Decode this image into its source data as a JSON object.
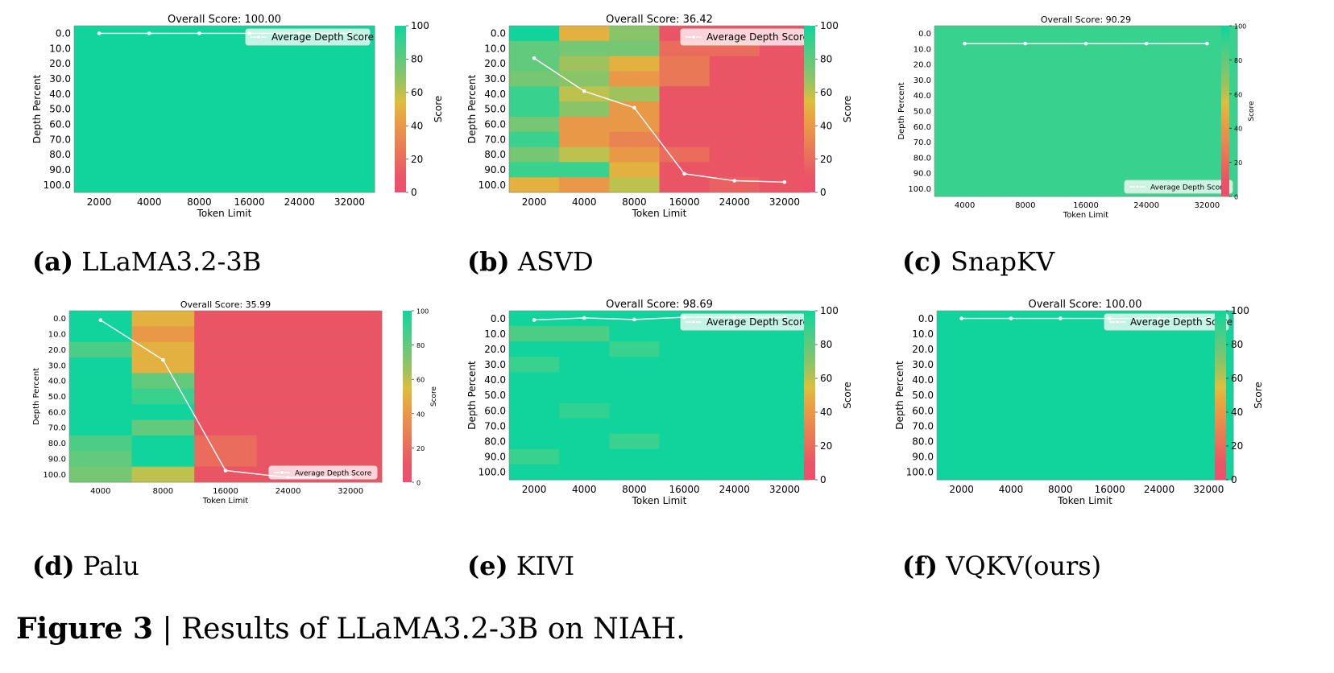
{
  "colors": {
    "green": "#10d49c",
    "green_mid": "#38d18e",
    "green_light": "#69c87a",
    "yellow_green": "#9fc25d",
    "yellow": "#dbbf3e",
    "orange": "#e9a342",
    "orange_red": "#e98352",
    "red": "#ea5566",
    "pink_red": "#ed4f6e"
  },
  "chart_data": [
    {
      "id": "a",
      "type": "heatmap",
      "title": "Overall Score: 100.00",
      "xlabel": "Token Limit",
      "ylabel": "Depth Percent",
      "x": [
        "2000",
        "4000",
        "8000",
        "16000",
        "24000",
        "32000"
      ],
      "y": [
        "0.0",
        "10.0",
        "20.0",
        "30.0",
        "40.0",
        "50.0",
        "60.0",
        "70.0",
        "80.0",
        "90.0",
        "100.0"
      ],
      "values": [
        [
          100,
          100,
          100,
          100,
          100,
          100
        ],
        [
          100,
          100,
          100,
          100,
          100,
          100
        ],
        [
          100,
          100,
          100,
          100,
          100,
          100
        ],
        [
          100,
          100,
          100,
          100,
          100,
          100
        ],
        [
          100,
          100,
          100,
          100,
          100,
          100
        ],
        [
          100,
          100,
          100,
          100,
          100,
          100
        ],
        [
          100,
          100,
          100,
          100,
          100,
          100
        ],
        [
          100,
          100,
          100,
          100,
          100,
          100
        ],
        [
          100,
          100,
          100,
          100,
          100,
          100
        ],
        [
          100,
          100,
          100,
          100,
          100,
          100
        ],
        [
          100,
          100,
          100,
          100,
          100,
          100
        ]
      ],
      "average_depth_score": [
        0,
        0,
        0,
        0,
        0,
        0
      ],
      "legend": "Average Depth Score",
      "legend_position": "top-right",
      "colorbar_label": "Score",
      "colorbar_ticks": [
        "0",
        "20",
        "40",
        "60",
        "80",
        "100"
      ],
      "caption_letter": "(a)",
      "caption_text": "LLaMA3.2-3B"
    },
    {
      "id": "b",
      "type": "heatmap",
      "title": "Overall Score: 36.42",
      "xlabel": "Token Limit",
      "ylabel": "Depth Percent",
      "x": [
        "2000",
        "4000",
        "8000",
        "16000",
        "24000",
        "32000"
      ],
      "y": [
        "0.0",
        "10.0",
        "20.0",
        "30.0",
        "40.0",
        "50.0",
        "60.0",
        "70.0",
        "80.0",
        "90.0",
        "100.0"
      ],
      "values": [
        [
          100,
          50,
          70,
          10,
          10,
          10
        ],
        [
          80,
          75,
          75,
          20,
          20,
          10
        ],
        [
          80,
          65,
          50,
          25,
          10,
          10
        ],
        [
          75,
          70,
          40,
          25,
          10,
          10
        ],
        [
          90,
          60,
          65,
          10,
          10,
          10
        ],
        [
          90,
          70,
          40,
          10,
          10,
          10
        ],
        [
          75,
          40,
          40,
          10,
          10,
          10
        ],
        [
          90,
          40,
          30,
          10,
          10,
          10
        ],
        [
          75,
          60,
          40,
          20,
          10,
          10
        ],
        [
          90,
          90,
          50,
          10,
          10,
          10
        ],
        [
          50,
          40,
          60,
          10,
          15,
          10
        ]
      ],
      "average_depth_score": [
        16.4,
        38.2,
        49.1,
        92.7,
        97.3,
        98.2
      ],
      "legend": "Average Depth Score",
      "legend_position": "top-right",
      "colorbar_label": "Score",
      "colorbar_ticks": [
        "0",
        "20",
        "40",
        "60",
        "80",
        "100"
      ],
      "caption_letter": "(b)",
      "caption_text": "ASVD"
    },
    {
      "id": "c",
      "type": "heatmap",
      "title": "Overall Score: 90.29",
      "xlabel": "Token Limit",
      "ylabel": "Depth Percent",
      "x": [
        "4000",
        "8000",
        "16000",
        "24000",
        "32000"
      ],
      "y": [
        "0.0",
        "10.0",
        "20.0",
        "30.0",
        "40.0",
        "50.0",
        "60.0",
        "70.0",
        "80.0",
        "90.0",
        "100.0"
      ],
      "values": [
        [
          90,
          90,
          90,
          90,
          90
        ],
        [
          90,
          90,
          90,
          90,
          90
        ],
        [
          90,
          90,
          90,
          90,
          90
        ],
        [
          90,
          90,
          90,
          90,
          90
        ],
        [
          90,
          90,
          90,
          90,
          90
        ],
        [
          90,
          90,
          90,
          90,
          90
        ],
        [
          90,
          90,
          90,
          90,
          90
        ],
        [
          90,
          90,
          90,
          90,
          90
        ],
        [
          90,
          90,
          90,
          90,
          90
        ],
        [
          90,
          90,
          90,
          90,
          90
        ],
        [
          90,
          90,
          90,
          90,
          90
        ]
      ],
      "average_depth_score": [
        6.5,
        6.5,
        6.5,
        6.5,
        6.5
      ],
      "legend": "Average Depth Score",
      "legend_position": "bottom-right",
      "colorbar_label": "Score",
      "colorbar_ticks": [
        "0",
        "20",
        "40",
        "60",
        "80",
        "100"
      ],
      "caption_letter": "(c)",
      "caption_text": "SnapKV"
    },
    {
      "id": "d",
      "type": "heatmap",
      "title": "Overall Score: 35.99",
      "xlabel": "Token Limit",
      "ylabel": "Depth Percent",
      "x": [
        "4000",
        "8000",
        "16000",
        "24000",
        "32000"
      ],
      "y": [
        "0.0",
        "10.0",
        "20.0",
        "30.0",
        "40.0",
        "50.0",
        "60.0",
        "70.0",
        "80.0",
        "90.0",
        "100.0"
      ],
      "values": [
        [
          100,
          50,
          10,
          10,
          10
        ],
        [
          100,
          40,
          10,
          10,
          10
        ],
        [
          85,
          50,
          10,
          10,
          10
        ],
        [
          100,
          50,
          10,
          10,
          10
        ],
        [
          100,
          80,
          10,
          10,
          10
        ],
        [
          100,
          90,
          10,
          10,
          10
        ],
        [
          100,
          100,
          10,
          10,
          10
        ],
        [
          100,
          80,
          10,
          10,
          10
        ],
        [
          85,
          100,
          20,
          10,
          10
        ],
        [
          80,
          100,
          20,
          10,
          10
        ],
        [
          75,
          60,
          10,
          10,
          10
        ]
      ],
      "average_depth_score": [
        1.0,
        26.5,
        97.5,
        102.0,
        102.0
      ],
      "legend": "Average Depth Score",
      "legend_position": "bottom-right",
      "colorbar_label": "Score",
      "colorbar_ticks": [
        "0",
        "20",
        "40",
        "60",
        "80",
        "100"
      ],
      "caption_letter": "(d)",
      "caption_text": "Palu"
    },
    {
      "id": "e",
      "type": "heatmap",
      "title": "Overall Score: 98.69",
      "xlabel": "Token Limit",
      "ylabel": "Depth Percent",
      "x": [
        "2000",
        "4000",
        "8000",
        "16000",
        "24000",
        "32000"
      ],
      "y": [
        "0.0",
        "10.0",
        "20.0",
        "30.0",
        "40.0",
        "50.0",
        "60.0",
        "70.0",
        "80.0",
        "90.0",
        "100.0"
      ],
      "values": [
        [
          100,
          100,
          100,
          100,
          100,
          100
        ],
        [
          85,
          85,
          100,
          100,
          100,
          100
        ],
        [
          100,
          100,
          90,
          100,
          100,
          100
        ],
        [
          90,
          100,
          100,
          100,
          100,
          100
        ],
        [
          100,
          100,
          100,
          100,
          100,
          100
        ],
        [
          100,
          100,
          100,
          100,
          100,
          100
        ],
        [
          100,
          92,
          100,
          100,
          100,
          100
        ],
        [
          100,
          100,
          100,
          100,
          100,
          100
        ],
        [
          100,
          100,
          90,
          100,
          100,
          100
        ],
        [
          90,
          100,
          100,
          100,
          100,
          100
        ],
        [
          100,
          100,
          100,
          100,
          100,
          100
        ]
      ],
      "average_depth_score": [
        1.0,
        -0.3,
        0.7,
        -0.8,
        -0.8,
        -0.8
      ],
      "legend": "Average Depth Score",
      "legend_position": "top-right",
      "colorbar_label": "Score",
      "colorbar_ticks": [
        "0",
        "20",
        "40",
        "60",
        "80",
        "100"
      ],
      "caption_letter": "(e)",
      "caption_text": "KIVI"
    },
    {
      "id": "f",
      "type": "heatmap",
      "title": "Overall Score: 100.00",
      "xlabel": "Token Limit",
      "ylabel": "Depth Percent",
      "x": [
        "2000",
        "4000",
        "8000",
        "16000",
        "24000",
        "32000"
      ],
      "y": [
        "0.0",
        "10.0",
        "20.0",
        "30.0",
        "40.0",
        "50.0",
        "60.0",
        "70.0",
        "80.0",
        "90.0",
        "100.0"
      ],
      "values": [
        [
          100,
          100,
          100,
          100,
          100,
          100
        ],
        [
          100,
          100,
          100,
          100,
          100,
          100
        ],
        [
          100,
          100,
          100,
          100,
          100,
          100
        ],
        [
          100,
          100,
          100,
          100,
          100,
          100
        ],
        [
          100,
          100,
          100,
          100,
          100,
          100
        ],
        [
          100,
          100,
          100,
          100,
          100,
          100
        ],
        [
          100,
          100,
          100,
          100,
          100,
          100
        ],
        [
          100,
          100,
          100,
          100,
          100,
          100
        ],
        [
          100,
          100,
          100,
          100,
          100,
          100
        ],
        [
          100,
          100,
          100,
          100,
          100,
          100
        ],
        [
          100,
          100,
          100,
          100,
          100,
          100
        ]
      ],
      "average_depth_score": [
        0,
        0,
        0,
        0,
        0,
        0
      ],
      "legend": "Average Depth Score",
      "legend_position": "top-right",
      "colorbar_label": "Score",
      "colorbar_ticks": [
        "0",
        "20",
        "40",
        "60",
        "80",
        "100"
      ],
      "caption_letter": "(f)",
      "caption_text": "VQKV(ours)"
    }
  ],
  "figure_caption": {
    "label": "Figure 3",
    "text": " | Results of LLaMA3.2-3B on NIAH."
  }
}
